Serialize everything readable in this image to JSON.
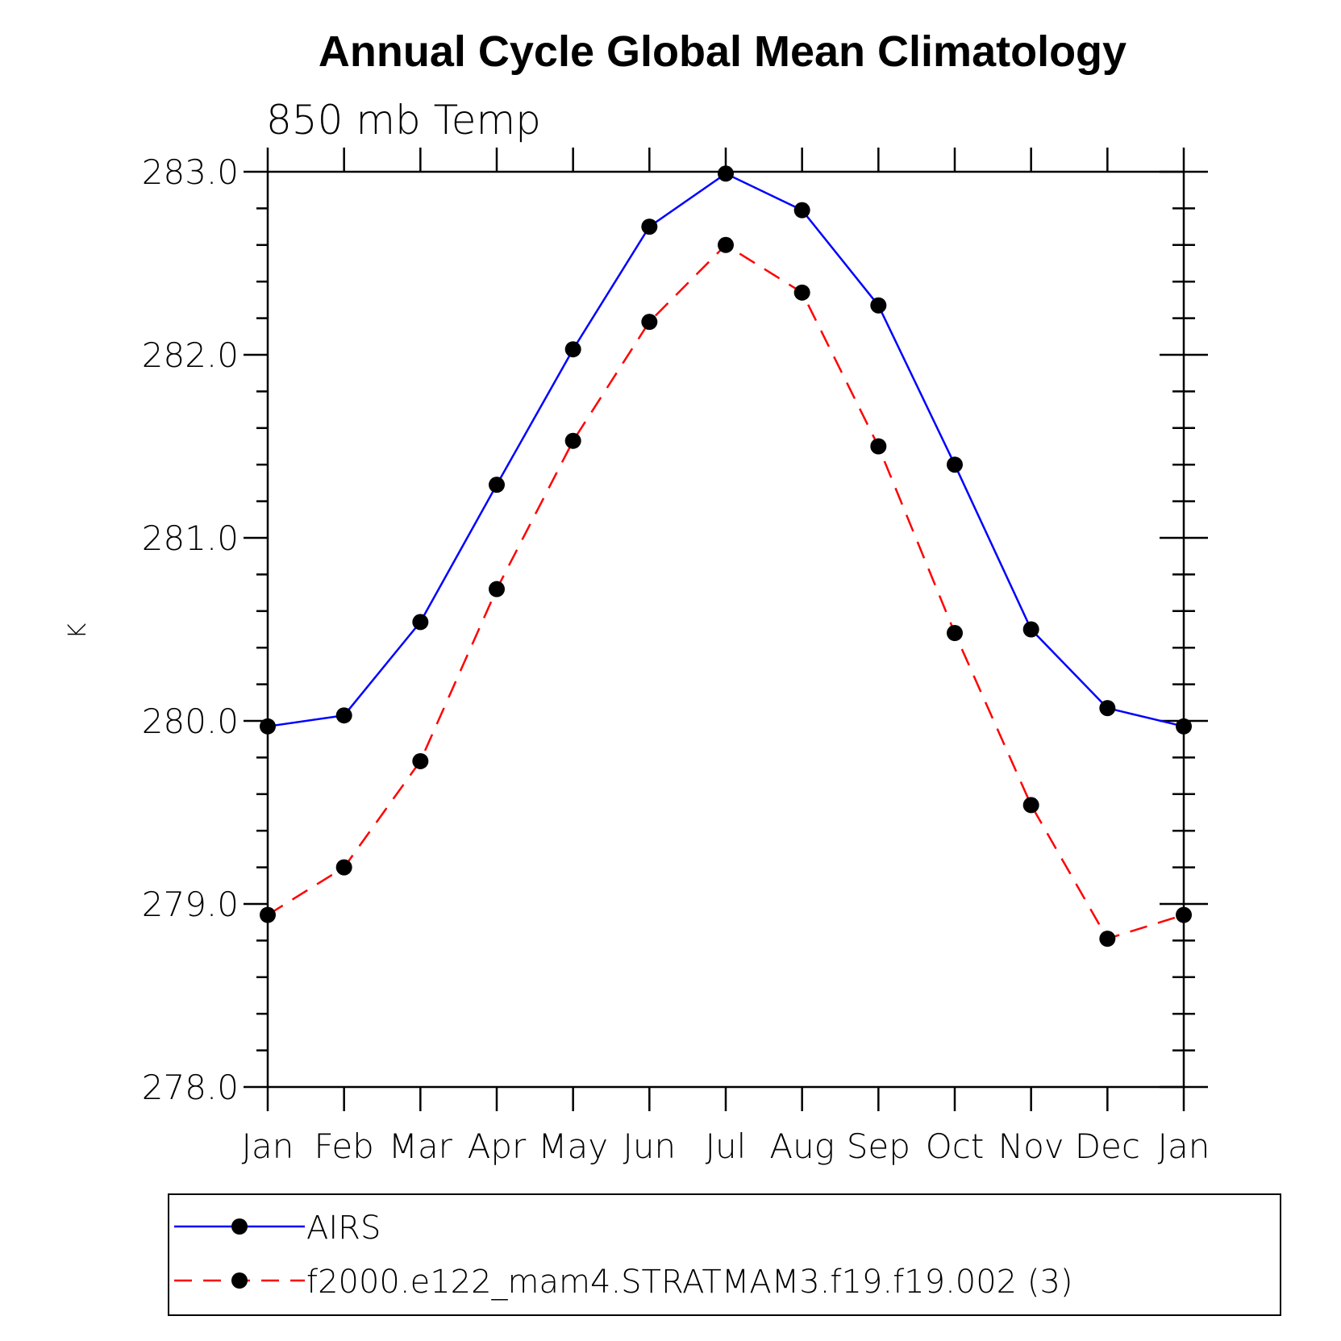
{
  "chart_data": {
    "type": "line",
    "title": "Annual Cycle Global Mean Climatology",
    "subtitle": "850 mb Temp",
    "xlabel": "",
    "ylabel": "K",
    "categories": [
      "Jan",
      "Feb",
      "Mar",
      "Apr",
      "May",
      "Jun",
      "Jul",
      "Aug",
      "Sep",
      "Oct",
      "Nov",
      "Dec",
      "Jan"
    ],
    "ylim": [
      278.0,
      283.0
    ],
    "yticks": [
      "278.0",
      "279.0",
      "280.0",
      "281.0",
      "282.0",
      "283.0"
    ],
    "grid": false,
    "legend_position": "bottom",
    "series": [
      {
        "name": "AIRS",
        "color": "#0000ff",
        "line_style": "solid",
        "marker": "filled-circle",
        "values": [
          279.97,
          280.03,
          280.54,
          281.29,
          282.03,
          282.7,
          282.99,
          282.79,
          282.27,
          281.4,
          280.5,
          280.07,
          279.97
        ]
      },
      {
        "name": "f2000.e122_mam4.STRATMAM3.f19.f19.002 (3)",
        "color": "#ff0000",
        "line_style": "dashed",
        "marker": "filled-circle",
        "values": [
          278.94,
          279.2,
          279.78,
          280.72,
          281.53,
          282.18,
          282.6,
          282.34,
          281.5,
          280.48,
          279.54,
          278.81,
          278.94
        ]
      }
    ]
  }
}
